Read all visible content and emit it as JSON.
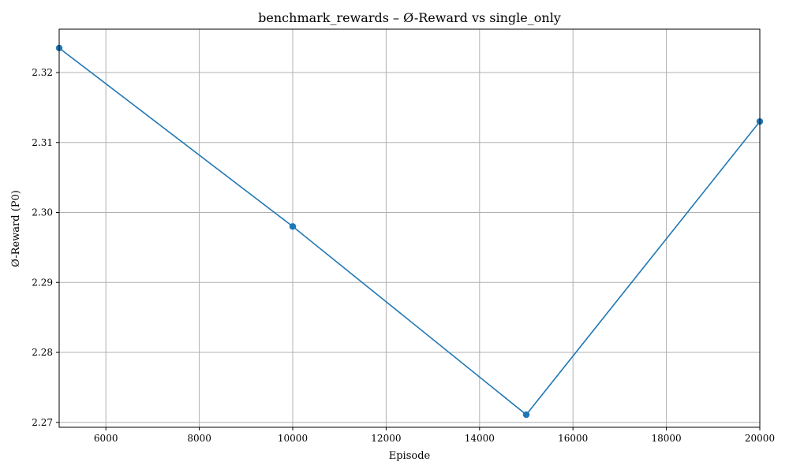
{
  "chart_data": {
    "type": "line",
    "title": "benchmark_rewards – Ø-Reward vs single_only",
    "xlabel": "Episode",
    "ylabel": "Ø-Reward (P0)",
    "xlim": [
      5000,
      20000
    ],
    "ylim": [
      2.2693,
      2.3262
    ],
    "x_ticks": [
      6000,
      8000,
      10000,
      12000,
      14000,
      16000,
      18000,
      20000
    ],
    "y_ticks": [
      2.27,
      2.28,
      2.29,
      2.3,
      2.31,
      2.32
    ],
    "grid": true,
    "series": [
      {
        "color": "#1f77b4",
        "marker": "circle",
        "points": [
          {
            "x": 5000,
            "y": 2.3235
          },
          {
            "x": 10000,
            "y": 2.298
          },
          {
            "x": 15000,
            "y": 2.2711
          },
          {
            "x": 20000,
            "y": 2.313
          }
        ]
      }
    ]
  }
}
